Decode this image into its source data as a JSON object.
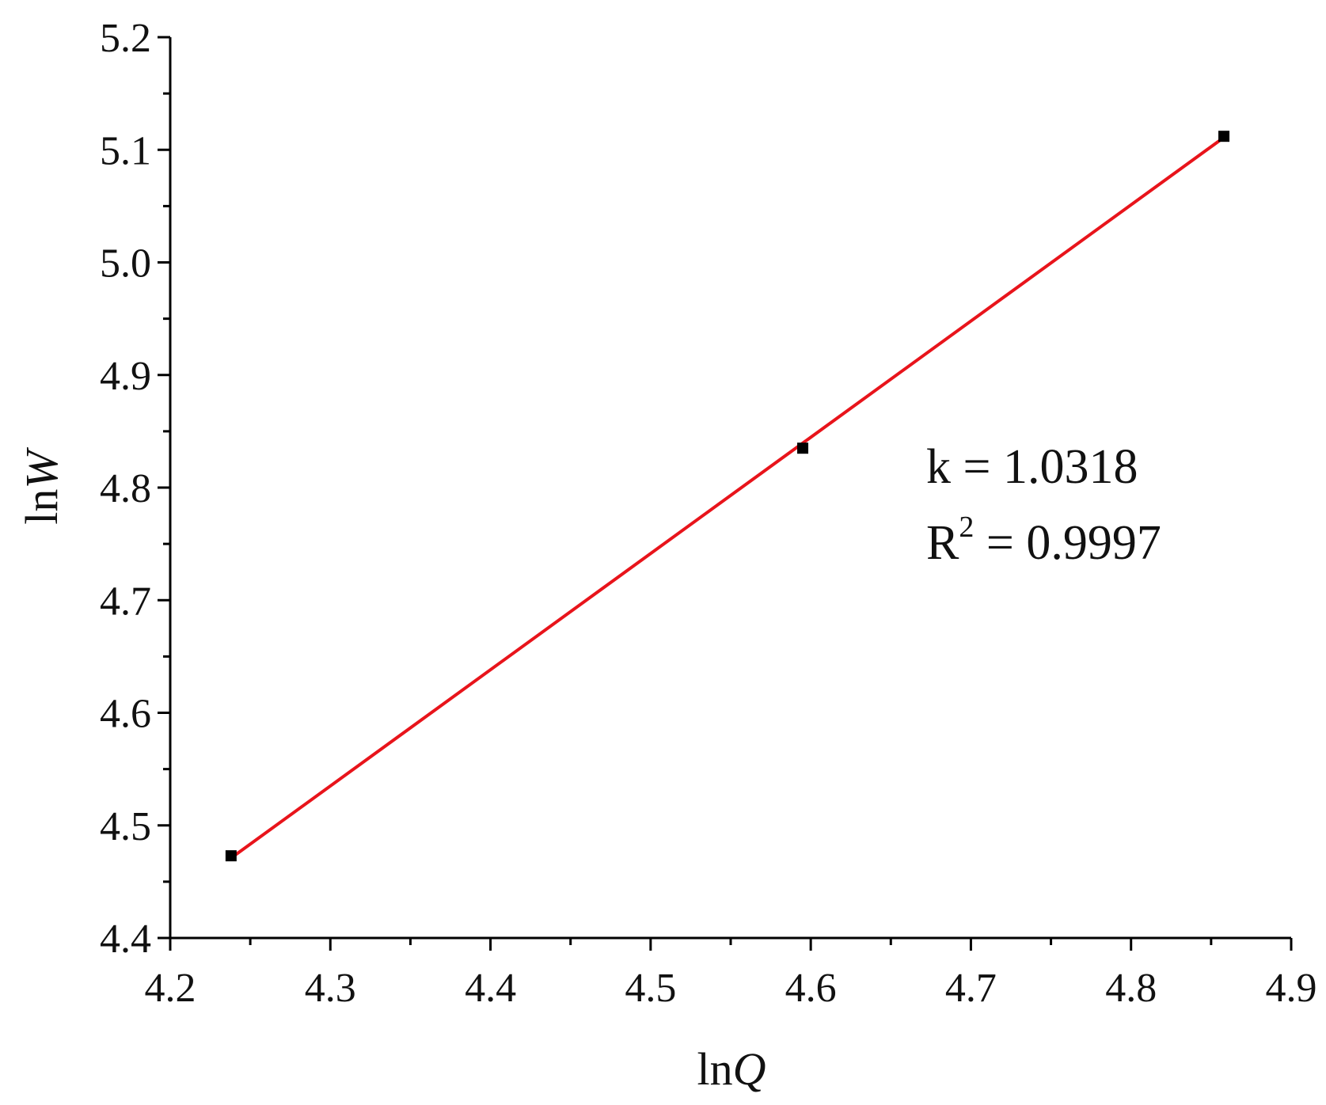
{
  "chart_data": {
    "type": "scatter",
    "x_var": "ln",
    "x_var_italic": "Q",
    "y_var": "ln",
    "y_var_italic": "W",
    "xlim": [
      4.2,
      4.9
    ],
    "ylim": [
      4.4,
      5.2
    ],
    "x_ticks": [
      "4.2",
      "4.3",
      "4.4",
      "4.5",
      "4.6",
      "4.7",
      "4.8",
      "4.9"
    ],
    "y_ticks": [
      "4.4",
      "4.5",
      "4.6",
      "4.7",
      "4.8",
      "4.9",
      "5.0",
      "5.1",
      "5.2"
    ],
    "grid": false,
    "points": [
      {
        "x": 4.238,
        "y": 4.473
      },
      {
        "x": 4.595,
        "y": 4.835
      },
      {
        "x": 4.858,
        "y": 5.112
      }
    ],
    "fit_line": {
      "x": [
        4.238,
        4.858
      ],
      "y": [
        4.471,
        5.111
      ],
      "color": "#e8141b"
    },
    "marker_color": "#000000",
    "annotation": {
      "k_text": "k = 1.0318",
      "r2_prefix": "R",
      "r2_sup": "2",
      "r2_value": " = 0.9997"
    }
  }
}
